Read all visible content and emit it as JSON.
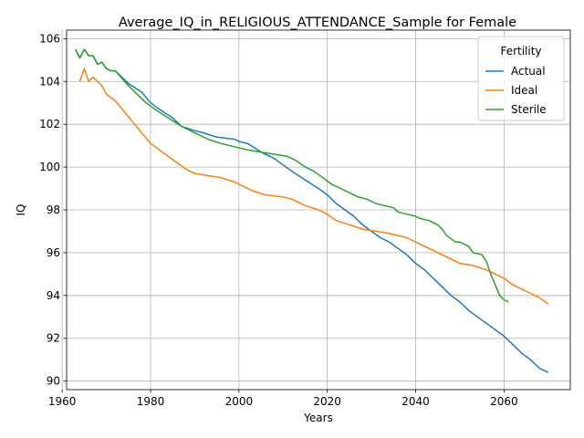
{
  "chart_data": {
    "type": "line",
    "title": "Average_IQ_in_RELIGIOUS_ATTENDANCE_Sample for Female",
    "xlabel": "Years",
    "ylabel": "IQ",
    "xlim": [
      1961,
      2075
    ],
    "ylim": [
      89.6,
      106.4
    ],
    "x_ticks": [
      1960,
      1980,
      2000,
      2020,
      2040,
      2060
    ],
    "y_ticks": [
      90,
      92,
      94,
      96,
      98,
      100,
      102,
      104,
      106
    ],
    "grid": true,
    "legend": {
      "title": "Fertility",
      "position": "top-right"
    },
    "series": [
      {
        "name": "Actual",
        "color": "#1f77b4",
        "points": [
          [
            1963,
            105.5
          ],
          [
            1964,
            105.1
          ],
          [
            1965,
            105.5
          ],
          [
            1966,
            105.2
          ],
          [
            1967,
            105.2
          ],
          [
            1968,
            104.8
          ],
          [
            1969,
            104.9
          ],
          [
            1970,
            104.6
          ],
          [
            1971,
            104.5
          ],
          [
            1972,
            104.5
          ],
          [
            1975,
            103.9
          ],
          [
            1978,
            103.5
          ],
          [
            1980,
            103.0
          ],
          [
            1982,
            102.7
          ],
          [
            1985,
            102.3
          ],
          [
            1987,
            101.9
          ],
          [
            1990,
            101.7
          ],
          [
            1992,
            101.6
          ],
          [
            1995,
            101.4
          ],
          [
            1999,
            101.3
          ],
          [
            2000,
            101.2
          ],
          [
            2002,
            101.1
          ],
          [
            2005,
            100.7
          ],
          [
            2008,
            100.4
          ],
          [
            2010,
            100.1
          ],
          [
            2012,
            99.8
          ],
          [
            2015,
            99.4
          ],
          [
            2018,
            99.0
          ],
          [
            2020,
            98.7
          ],
          [
            2022,
            98.3
          ],
          [
            2024,
            98.0
          ],
          [
            2026,
            97.7
          ],
          [
            2028,
            97.3
          ],
          [
            2030,
            97.0
          ],
          [
            2032,
            96.7
          ],
          [
            2034,
            96.5
          ],
          [
            2036,
            96.2
          ],
          [
            2038,
            95.9
          ],
          [
            2040,
            95.5
          ],
          [
            2042,
            95.2
          ],
          [
            2044,
            94.8
          ],
          [
            2046,
            94.4
          ],
          [
            2048,
            94.0
          ],
          [
            2050,
            93.7
          ],
          [
            2052,
            93.3
          ],
          [
            2054,
            93.0
          ],
          [
            2056,
            92.7
          ],
          [
            2058,
            92.4
          ],
          [
            2060,
            92.1
          ],
          [
            2062,
            91.7
          ],
          [
            2064,
            91.3
          ],
          [
            2066,
            91.0
          ],
          [
            2068,
            90.6
          ],
          [
            2070,
            90.4
          ]
        ]
      },
      {
        "name": "Ideal",
        "color": "#ff7f0e",
        "points": [
          [
            1964,
            104.0
          ],
          [
            1965,
            104.6
          ],
          [
            1966,
            104.0
          ],
          [
            1967,
            104.2
          ],
          [
            1968,
            104.0
          ],
          [
            1969,
            103.8
          ],
          [
            1970,
            103.4
          ],
          [
            1972,
            103.1
          ],
          [
            1974,
            102.6
          ],
          [
            1976,
            102.1
          ],
          [
            1978,
            101.6
          ],
          [
            1980,
            101.1
          ],
          [
            1982,
            100.8
          ],
          [
            1984,
            100.5
          ],
          [
            1986,
            100.2
          ],
          [
            1988,
            99.9
          ],
          [
            1990,
            99.7
          ],
          [
            1993,
            99.6
          ],
          [
            1996,
            99.5
          ],
          [
            1999,
            99.3
          ],
          [
            2001,
            99.1
          ],
          [
            2003,
            98.9
          ],
          [
            2006,
            98.7
          ],
          [
            2010,
            98.6
          ],
          [
            2012,
            98.5
          ],
          [
            2015,
            98.2
          ],
          [
            2018,
            98.0
          ],
          [
            2020,
            97.8
          ],
          [
            2022,
            97.5
          ],
          [
            2025,
            97.3
          ],
          [
            2028,
            97.1
          ],
          [
            2031,
            97.0
          ],
          [
            2034,
            96.9
          ],
          [
            2036,
            96.8
          ],
          [
            2038,
            96.7
          ],
          [
            2040,
            96.5
          ],
          [
            2042,
            96.3
          ],
          [
            2044,
            96.1
          ],
          [
            2046,
            95.9
          ],
          [
            2048,
            95.7
          ],
          [
            2050,
            95.5
          ],
          [
            2053,
            95.4
          ],
          [
            2056,
            95.2
          ],
          [
            2058,
            95.0
          ],
          [
            2060,
            94.8
          ],
          [
            2062,
            94.5
          ],
          [
            2064,
            94.3
          ],
          [
            2066,
            94.1
          ],
          [
            2068,
            93.9
          ],
          [
            2070,
            93.6
          ]
        ]
      },
      {
        "name": "Sterile",
        "color": "#2ca02c",
        "points": [
          [
            1963,
            105.5
          ],
          [
            1964,
            105.1
          ],
          [
            1965,
            105.5
          ],
          [
            1966,
            105.2
          ],
          [
            1967,
            105.2
          ],
          [
            1968,
            104.8
          ],
          [
            1969,
            104.9
          ],
          [
            1970,
            104.6
          ],
          [
            1971,
            104.5
          ],
          [
            1972,
            104.5
          ],
          [
            1975,
            103.8
          ],
          [
            1977,
            103.4
          ],
          [
            1979,
            103.0
          ],
          [
            1981,
            102.7
          ],
          [
            1984,
            102.3
          ],
          [
            1987,
            101.9
          ],
          [
            1990,
            101.6
          ],
          [
            1993,
            101.3
          ],
          [
            1996,
            101.1
          ],
          [
            2000,
            100.9
          ],
          [
            2002,
            100.8
          ],
          [
            2005,
            100.7
          ],
          [
            2008,
            100.6
          ],
          [
            2011,
            100.5
          ],
          [
            2013,
            100.3
          ],
          [
            2015,
            100.0
          ],
          [
            2017,
            99.8
          ],
          [
            2019,
            99.5
          ],
          [
            2021,
            99.2
          ],
          [
            2023,
            99.0
          ],
          [
            2025,
            98.8
          ],
          [
            2027,
            98.6
          ],
          [
            2029,
            98.5
          ],
          [
            2031,
            98.3
          ],
          [
            2035,
            98.1
          ],
          [
            2036,
            97.9
          ],
          [
            2038,
            97.8
          ],
          [
            2040,
            97.7
          ],
          [
            2041,
            97.6
          ],
          [
            2043,
            97.5
          ],
          [
            2045,
            97.3
          ],
          [
            2046,
            97.1
          ],
          [
            2047,
            96.8
          ],
          [
            2049,
            96.5
          ],
          [
            2050,
            96.5
          ],
          [
            2052,
            96.3
          ],
          [
            2053,
            96.0
          ],
          [
            2055,
            95.9
          ],
          [
            2056,
            95.6
          ],
          [
            2057,
            95.0
          ],
          [
            2058,
            94.5
          ],
          [
            2059,
            94.0
          ],
          [
            2060,
            93.8
          ],
          [
            2061,
            93.7
          ]
        ]
      }
    ]
  }
}
